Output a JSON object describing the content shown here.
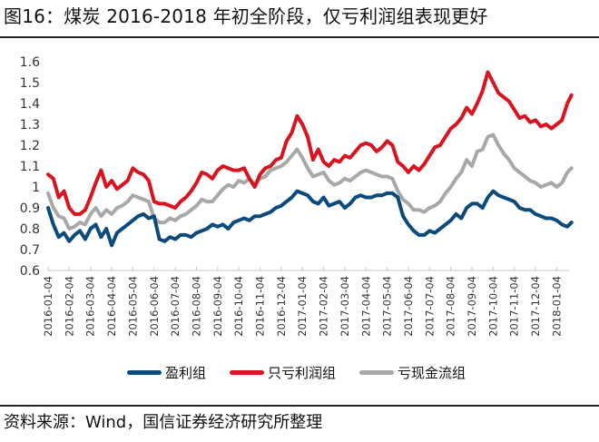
{
  "header": {
    "title": "图16：煤炭 2016-2018 年初全阶段，仅亏利润组表现更好"
  },
  "footer": {
    "source": "资料来源：Wind，国信证券经济研究所整理"
  },
  "legend": [
    {
      "label": "盈利组",
      "color": "#0b4a7d"
    },
    {
      "label": "只亏利润组",
      "color": "#d7141f"
    },
    {
      "label": "亏现金流组",
      "color": "#a8a8a8"
    }
  ],
  "chart_data": {
    "type": "line",
    "title": "煤炭 2016-2018 年初全阶段，仅亏利润组表现更好",
    "xlabel": "",
    "ylabel": "",
    "ylim": [
      0.6,
      1.6
    ],
    "yticks": [
      "0.6",
      "0.7",
      "0.8",
      "0.9",
      "1",
      "1.1",
      "1.2",
      "1.3",
      "1.4",
      "1.5",
      "1.6"
    ],
    "grid": false,
    "legend_position": "bottom",
    "categories": [
      "2016-01-04",
      "2016-02-04",
      "2016-03-04",
      "2016-04-04",
      "2016-05-04",
      "2016-06-04",
      "2016-07-04",
      "2016-08-04",
      "2016-09-04",
      "2016-10-04",
      "2016-11-04",
      "2016-12-04",
      "2017-01-04",
      "2017-02-04",
      "2017-03-04",
      "2017-04-04",
      "2017-05-04",
      "2017-06-04",
      "2017-07-04",
      "2017-08-04",
      "2017-09-04",
      "2017-10-04",
      "2017-11-04",
      "2017-12-04",
      "2018-01-04"
    ],
    "x": [
      0,
      0.25,
      0.5,
      0.75,
      1,
      1.25,
      1.5,
      1.75,
      2,
      2.25,
      2.5,
      2.75,
      3,
      3.25,
      3.5,
      3.75,
      4,
      4.25,
      4.5,
      4.75,
      5,
      5.25,
      5.5,
      5.75,
      6,
      6.25,
      6.5,
      6.75,
      7,
      7.25,
      7.5,
      7.75,
      8,
      8.25,
      8.5,
      8.75,
      9,
      9.25,
      9.5,
      9.75,
      10,
      10.25,
      10.5,
      10.75,
      11,
      11.25,
      11.5,
      11.75,
      12,
      12.25,
      12.5,
      12.75,
      13,
      13.25,
      13.5,
      13.75,
      14,
      14.25,
      14.5,
      14.75,
      15,
      15.25,
      15.5,
      15.75,
      16,
      16.25,
      16.5,
      16.75,
      17,
      17.25,
      17.5,
      17.75,
      18,
      18.25,
      18.5,
      18.75,
      19,
      19.25,
      19.5,
      19.75,
      20,
      20.25,
      20.5,
      20.75,
      21,
      21.25,
      21.5,
      21.75,
      22,
      22.25,
      22.5,
      22.75,
      23,
      23.25,
      23.5,
      23.75,
      24,
      24.25,
      24.5,
      24.7
    ],
    "series": [
      {
        "name": "盈利组",
        "color": "#0b4a7d",
        "values": [
          0.9,
          0.82,
          0.76,
          0.78,
          0.74,
          0.77,
          0.79,
          0.75,
          0.8,
          0.82,
          0.76,
          0.8,
          0.72,
          0.78,
          0.8,
          0.82,
          0.84,
          0.86,
          0.87,
          0.85,
          0.86,
          0.75,
          0.74,
          0.76,
          0.75,
          0.77,
          0.77,
          0.76,
          0.78,
          0.79,
          0.8,
          0.82,
          0.81,
          0.82,
          0.8,
          0.83,
          0.84,
          0.85,
          0.84,
          0.86,
          0.86,
          0.87,
          0.88,
          0.9,
          0.91,
          0.93,
          0.95,
          0.98,
          0.97,
          0.96,
          0.93,
          0.92,
          0.95,
          0.91,
          0.92,
          0.93,
          0.9,
          0.92,
          0.95,
          0.96,
          0.95,
          0.95,
          0.96,
          0.96,
          0.97,
          0.97,
          0.95,
          0.86,
          0.82,
          0.79,
          0.77,
          0.77,
          0.79,
          0.78,
          0.8,
          0.82,
          0.84,
          0.87,
          0.85,
          0.9,
          0.92,
          0.92,
          0.9,
          0.95,
          0.98,
          0.96,
          0.95,
          0.94,
          0.93,
          0.9,
          0.89,
          0.89,
          0.87,
          0.86,
          0.85,
          0.85,
          0.84,
          0.82,
          0.81,
          0.83,
          0.88,
          0.86,
          0.86
        ]
      },
      {
        "name": "只亏利润组",
        "color": "#d7141f",
        "values": [
          1.06,
          1.04,
          0.95,
          0.98,
          0.9,
          0.87,
          0.87,
          0.89,
          0.95,
          1.02,
          1.08,
          1.0,
          1.03,
          0.99,
          1.01,
          1.03,
          1.09,
          1.07,
          1.06,
          1.03,
          0.93,
          0.92,
          0.92,
          0.91,
          0.9,
          0.93,
          0.95,
          0.98,
          1.02,
          1.07,
          1.06,
          1.04,
          1.08,
          1.1,
          1.09,
          1.08,
          1.08,
          1.09,
          1.04,
          1.0,
          1.06,
          1.09,
          1.1,
          1.13,
          1.14,
          1.22,
          1.26,
          1.34,
          1.3,
          1.24,
          1.13,
          1.18,
          1.12,
          1.1,
          1.13,
          1.12,
          1.15,
          1.14,
          1.17,
          1.2,
          1.21,
          1.2,
          1.17,
          1.19,
          1.22,
          1.2,
          1.12,
          1.1,
          1.07,
          1.1,
          1.08,
          1.11,
          1.15,
          1.19,
          1.2,
          1.24,
          1.28,
          1.3,
          1.33,
          1.38,
          1.35,
          1.4,
          1.46,
          1.55,
          1.5,
          1.45,
          1.43,
          1.41,
          1.37,
          1.33,
          1.34,
          1.31,
          1.32,
          1.29,
          1.3,
          1.28,
          1.3,
          1.32,
          1.4,
          1.44,
          1.39,
          1.45,
          1.46
        ]
      },
      {
        "name": "亏现金流组",
        "color": "#a8a8a8",
        "values": [
          0.97,
          0.9,
          0.86,
          0.85,
          0.8,
          0.81,
          0.83,
          0.82,
          0.87,
          0.9,
          0.86,
          0.89,
          0.87,
          0.9,
          0.91,
          0.93,
          0.96,
          0.95,
          0.94,
          0.93,
          0.85,
          0.83,
          0.83,
          0.85,
          0.84,
          0.86,
          0.87,
          0.89,
          0.91,
          0.94,
          0.93,
          0.93,
          0.96,
          0.99,
          1.01,
          1.0,
          1.03,
          1.02,
          1.04,
          1.01,
          1.04,
          1.05,
          1.08,
          1.09,
          1.1,
          1.12,
          1.15,
          1.18,
          1.14,
          1.09,
          1.05,
          1.06,
          1.07,
          1.03,
          1.01,
          1.02,
          1.04,
          1.03,
          1.05,
          1.07,
          1.08,
          1.07,
          1.06,
          1.05,
          1.05,
          1.04,
          0.98,
          0.94,
          0.92,
          0.89,
          0.89,
          0.88,
          0.9,
          0.91,
          0.93,
          0.97,
          1.0,
          1.04,
          1.07,
          1.13,
          1.1,
          1.17,
          1.18,
          1.24,
          1.25,
          1.2,
          1.16,
          1.13,
          1.09,
          1.07,
          1.05,
          1.03,
          1.02,
          1.0,
          1.01,
          1.02,
          1.0,
          1.02,
          1.07,
          1.09,
          1.03,
          1.05,
          1.05
        ]
      }
    ]
  }
}
